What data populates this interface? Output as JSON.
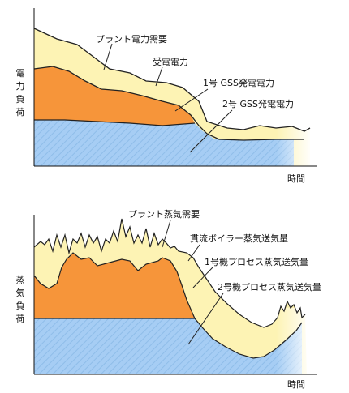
{
  "top_diagram": {
    "y_axis_label": [
      "電",
      "力",
      "負",
      "荷"
    ],
    "x_axis_label": "時間",
    "labels": {
      "plant_demand": "プラント電力需要",
      "received": "受電電力",
      "unit1": "1号 GSS発電電力",
      "unit2": "2号 GSS発電電力"
    }
  },
  "bottom_diagram": {
    "y_axis_label": [
      "蒸",
      "気",
      "負",
      "荷"
    ],
    "x_axis_label": "時間",
    "labels": {
      "plant_demand": "プラント蒸気需要",
      "once_through": "貫流ボイラー蒸気送気量",
      "unit1": "1号機プロセス蒸気送気量",
      "unit2": "2号機プロセス蒸気送気量"
    }
  },
  "colors": {
    "demand_fill": "#fdf3b4",
    "unit1_fill": "#f6953a",
    "unit2_fill": "#9ec8f2",
    "line": "#222222"
  }
}
